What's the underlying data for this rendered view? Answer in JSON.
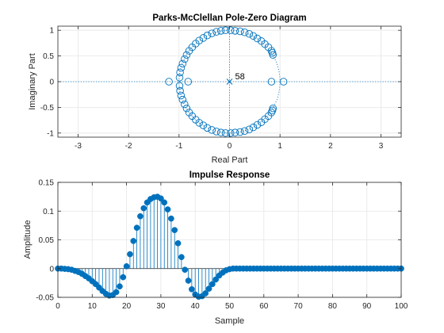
{
  "chart_data": [
    {
      "type": "scatter",
      "title": "Parks-McClellan Pole-Zero Diagram",
      "xlabel": "Real Part",
      "ylabel": "Imaginary Part",
      "xlim": [
        -3.4,
        3.4
      ],
      "ylim": [
        -1.08,
        1.08
      ],
      "xticks": [
        -3,
        -2,
        -1,
        0,
        1,
        2,
        3
      ],
      "yticks": [
        -1,
        -0.5,
        0,
        0.5,
        1
      ],
      "grid": true,
      "color": "#0072BD",
      "pole_multiplicity_label": "58",
      "poles": [
        [
          0,
          0
        ]
      ],
      "zeros": [
        [
          0.86,
          0.52
        ],
        [
          0.85,
          0.56
        ],
        [
          0.83,
          0.6
        ],
        [
          0.77,
          0.67
        ],
        [
          0.7,
          0.73
        ],
        [
          0.63,
          0.79
        ],
        [
          0.55,
          0.84
        ],
        [
          0.47,
          0.89
        ],
        [
          0.39,
          0.93
        ],
        [
          0.3,
          0.96
        ],
        [
          0.21,
          0.98
        ],
        [
          0.11,
          0.99
        ],
        [
          0.02,
          1.0
        ],
        [
          -0.08,
          1.0
        ],
        [
          -0.17,
          0.99
        ],
        [
          -0.26,
          0.97
        ],
        [
          -0.35,
          0.94
        ],
        [
          -0.44,
          0.9
        ],
        [
          -0.52,
          0.85
        ],
        [
          -0.6,
          0.8
        ],
        [
          -0.67,
          0.74
        ],
        [
          -0.74,
          0.67
        ],
        [
          -0.8,
          0.6
        ],
        [
          -0.85,
          0.52
        ],
        [
          -0.89,
          0.44
        ],
        [
          -0.93,
          0.35
        ],
        [
          -0.96,
          0.27
        ],
        [
          -0.98,
          0.18
        ],
        [
          -0.99,
          0.08
        ],
        [
          0.86,
          -0.52
        ],
        [
          0.85,
          -0.56
        ],
        [
          0.83,
          -0.6
        ],
        [
          0.77,
          -0.67
        ],
        [
          0.7,
          -0.73
        ],
        [
          0.63,
          -0.79
        ],
        [
          0.55,
          -0.84
        ],
        [
          0.47,
          -0.89
        ],
        [
          0.39,
          -0.93
        ],
        [
          0.3,
          -0.96
        ],
        [
          0.21,
          -0.98
        ],
        [
          0.11,
          -0.99
        ],
        [
          0.02,
          -1.0
        ],
        [
          -0.08,
          -1.0
        ],
        [
          -0.17,
          -0.99
        ],
        [
          -0.26,
          -0.97
        ],
        [
          -0.35,
          -0.94
        ],
        [
          -0.44,
          -0.9
        ],
        [
          -0.52,
          -0.85
        ],
        [
          -0.6,
          -0.8
        ],
        [
          -0.67,
          -0.74
        ],
        [
          -0.74,
          -0.67
        ],
        [
          -0.8,
          -0.6
        ],
        [
          -0.85,
          -0.52
        ],
        [
          -0.89,
          -0.44
        ],
        [
          -0.93,
          -0.35
        ],
        [
          -0.96,
          -0.27
        ],
        [
          -0.98,
          -0.18
        ],
        [
          -0.99,
          -0.08
        ],
        [
          -1.2,
          0
        ],
        [
          -0.82,
          0
        ],
        [
          0.83,
          0
        ],
        [
          1.07,
          0
        ]
      ]
    },
    {
      "type": "stem",
      "title": "Impulse Response",
      "xlabel": "Sample",
      "ylabel": "Amplitude",
      "xlim": [
        0,
        100
      ],
      "ylim": [
        -0.05,
        0.15
      ],
      "xticks": [
        0,
        10,
        20,
        30,
        40,
        50,
        60,
        70,
        80,
        90,
        100
      ],
      "yticks": [
        -0.05,
        0,
        0.05,
        0.1,
        0.15
      ],
      "grid": true,
      "color": "#0072BD",
      "x": [
        0,
        1,
        2,
        3,
        4,
        5,
        6,
        7,
        8,
        9,
        10,
        11,
        12,
        13,
        14,
        15,
        16,
        17,
        18,
        19,
        20,
        21,
        22,
        23,
        24,
        25,
        26,
        27,
        28,
        29,
        30,
        31,
        32,
        33,
        34,
        35,
        36,
        37,
        38,
        39,
        40,
        41,
        42,
        43,
        44,
        45,
        46,
        47,
        48,
        49,
        50,
        51,
        52,
        53,
        54,
        55,
        56,
        57,
        58,
        59,
        60,
        61,
        62,
        63,
        64,
        65,
        66,
        67,
        68,
        69,
        70,
        71,
        72,
        73,
        74,
        75,
        76,
        77,
        78,
        79,
        80,
        81,
        82,
        83,
        84,
        85,
        86,
        87,
        88,
        89,
        90,
        91,
        92,
        93,
        94,
        95,
        96,
        97,
        98,
        99,
        100
      ],
      "y": [
        0,
        0,
        -0.0005,
        -0.001,
        -0.002,
        -0.004,
        -0.006,
        -0.009,
        -0.013,
        -0.017,
        -0.022,
        -0.027,
        -0.033,
        -0.039,
        -0.044,
        -0.047,
        -0.046,
        -0.041,
        -0.031,
        -0.015,
        0.004,
        0.025,
        0.048,
        0.071,
        0.091,
        0.105,
        0.115,
        0.121,
        0.124,
        0.125,
        0.122,
        0.115,
        0.103,
        0.087,
        0.067,
        0.044,
        0.02,
        -0.002,
        -0.021,
        -0.036,
        -0.045,
        -0.049,
        -0.048,
        -0.043,
        -0.035,
        -0.027,
        -0.019,
        -0.012,
        -0.007,
        -0.003,
        -0.001,
        0,
        0,
        0,
        0,
        0,
        0,
        0,
        0,
        0,
        0,
        0,
        0,
        0,
        0,
        0,
        0,
        0,
        0,
        0,
        0,
        0,
        0,
        0,
        0,
        0,
        0,
        0,
        0,
        0,
        0,
        0,
        0,
        0,
        0,
        0,
        0,
        0,
        0,
        0,
        0,
        0,
        0,
        0,
        0,
        0,
        0,
        0,
        0,
        0,
        0
      ]
    }
  ]
}
